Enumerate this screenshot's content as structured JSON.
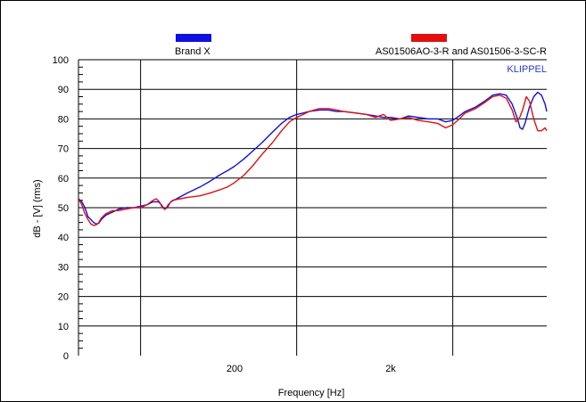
{
  "chart_data": {
    "type": "line",
    "title": "",
    "watermark": "KLIPPEL",
    "xlabel": "Frequency [Hz]",
    "ylabel": "dB - [V] (rms)",
    "x_scale": "log",
    "xlim": [
      20,
      20000
    ],
    "ylim": [
      0,
      100
    ],
    "y_ticks": [
      0,
      10,
      20,
      30,
      40,
      50,
      60,
      70,
      80,
      90,
      100
    ],
    "y_tick_labels": [
      "0",
      "10",
      "20",
      "30",
      "40",
      "50",
      "60",
      "70",
      "80",
      "90",
      "100"
    ],
    "x_tick_labels": [
      {
        "value": 200,
        "label": "200"
      },
      {
        "value": 2000,
        "label": "2k"
      }
    ],
    "x_gridlines": [
      50,
      500,
      5000
    ],
    "grid": true,
    "legend_position": "top",
    "series": [
      {
        "name": "Brand X",
        "color": "#1010e0",
        "points": [
          [
            20,
            53
          ],
          [
            21,
            52
          ],
          [
            22,
            50
          ],
          [
            23,
            47
          ],
          [
            24,
            46
          ],
          [
            25,
            45
          ],
          [
            26,
            44.5
          ],
          [
            27,
            44.8
          ],
          [
            28,
            46
          ],
          [
            30,
            47.5
          ],
          [
            33,
            48.5
          ],
          [
            36,
            49.5
          ],
          [
            40,
            50
          ],
          [
            45,
            50
          ],
          [
            50,
            50.5
          ],
          [
            55,
            51
          ],
          [
            60,
            52
          ],
          [
            65,
            52
          ],
          [
            68,
            51
          ],
          [
            71,
            49.5
          ],
          [
            74,
            50
          ],
          [
            78,
            52
          ],
          [
            85,
            53
          ],
          [
            100,
            55
          ],
          [
            120,
            57
          ],
          [
            140,
            59
          ],
          [
            160,
            61
          ],
          [
            180,
            62.5
          ],
          [
            200,
            64
          ],
          [
            230,
            66.5
          ],
          [
            260,
            69
          ],
          [
            300,
            72
          ],
          [
            350,
            75.5
          ],
          [
            400,
            78.5
          ],
          [
            450,
            80.5
          ],
          [
            500,
            81.5
          ],
          [
            550,
            82
          ],
          [
            600,
            82.5
          ],
          [
            700,
            83
          ],
          [
            800,
            83
          ],
          [
            900,
            82.5
          ],
          [
            1000,
            82.5
          ],
          [
            1200,
            82
          ],
          [
            1400,
            81.5
          ],
          [
            1600,
            81
          ],
          [
            1800,
            80.5
          ],
          [
            2000,
            80.5
          ],
          [
            2300,
            80
          ],
          [
            2600,
            81
          ],
          [
            3000,
            80.5
          ],
          [
            3500,
            80
          ],
          [
            4000,
            80
          ],
          [
            4500,
            79
          ],
          [
            5000,
            79.5
          ],
          [
            5500,
            81
          ],
          [
            6000,
            82.5
          ],
          [
            7000,
            84
          ],
          [
            8000,
            86
          ],
          [
            9000,
            88
          ],
          [
            10000,
            88.5
          ],
          [
            11000,
            88
          ],
          [
            12000,
            85
          ],
          [
            13000,
            80
          ],
          [
            13500,
            77
          ],
          [
            14000,
            76.5
          ],
          [
            14500,
            78.5
          ],
          [
            15500,
            84
          ],
          [
            16500,
            87.5
          ],
          [
            17500,
            89
          ],
          [
            18500,
            88
          ],
          [
            19500,
            85
          ],
          [
            20000,
            82.5
          ]
        ]
      },
      {
        "name": "AS01506AO-3-R and AS01506-3-SC-R",
        "color": "#e01010",
        "points": [
          [
            20,
            53
          ],
          [
            21,
            51
          ],
          [
            22,
            48
          ],
          [
            23,
            46
          ],
          [
            24,
            44.5
          ],
          [
            25,
            44
          ],
          [
            26,
            44.2
          ],
          [
            27,
            45
          ],
          [
            28,
            46.5
          ],
          [
            30,
            48
          ],
          [
            33,
            49
          ],
          [
            36,
            49
          ],
          [
            40,
            49.5
          ],
          [
            45,
            50
          ],
          [
            50,
            50
          ],
          [
            55,
            51
          ],
          [
            60,
            52.5
          ],
          [
            63,
            53
          ],
          [
            66,
            52
          ],
          [
            69,
            50
          ],
          [
            72,
            49.5
          ],
          [
            75,
            51
          ],
          [
            80,
            52.5
          ],
          [
            90,
            53
          ],
          [
            100,
            53.5
          ],
          [
            120,
            54
          ],
          [
            140,
            55
          ],
          [
            160,
            56
          ],
          [
            180,
            57
          ],
          [
            200,
            58.5
          ],
          [
            230,
            61
          ],
          [
            260,
            64
          ],
          [
            300,
            68
          ],
          [
            350,
            72
          ],
          [
            400,
            76
          ],
          [
            450,
            79
          ],
          [
            500,
            80.5
          ],
          [
            550,
            81.5
          ],
          [
            600,
            82.5
          ],
          [
            700,
            83.5
          ],
          [
            800,
            83.5
          ],
          [
            900,
            83
          ],
          [
            1000,
            82.5
          ],
          [
            1200,
            82
          ],
          [
            1400,
            81.5
          ],
          [
            1600,
            80.5
          ],
          [
            1800,
            81.5
          ],
          [
            2000,
            79.5
          ],
          [
            2300,
            80
          ],
          [
            2600,
            80.5
          ],
          [
            3000,
            79.5
          ],
          [
            3500,
            79
          ],
          [
            4000,
            78.5
          ],
          [
            4500,
            77
          ],
          [
            5000,
            78
          ],
          [
            5500,
            80
          ],
          [
            6000,
            82
          ],
          [
            7000,
            83.5
          ],
          [
            8000,
            85.5
          ],
          [
            9000,
            87.5
          ],
          [
            10000,
            88
          ],
          [
            11000,
            87
          ],
          [
            12000,
            83
          ],
          [
            12700,
            79
          ],
          [
            13300,
            80
          ],
          [
            14000,
            83
          ],
          [
            14800,
            87.5
          ],
          [
            15500,
            86
          ],
          [
            16500,
            80
          ],
          [
            17500,
            76
          ],
          [
            18500,
            76
          ],
          [
            19500,
            77
          ],
          [
            20000,
            76
          ]
        ]
      }
    ]
  }
}
